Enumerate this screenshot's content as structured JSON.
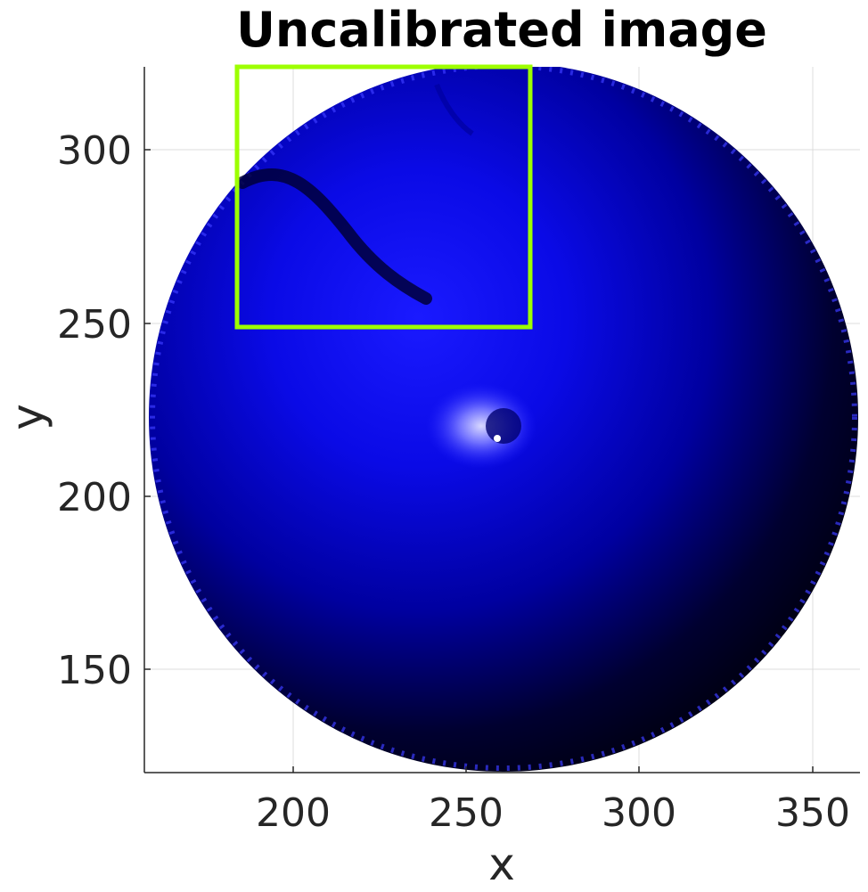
{
  "figure": {
    "title": "Uncalibrated image",
    "xlabel": "x",
    "ylabel": "y"
  },
  "axes": {
    "x_ticks": [
      "200",
      "250",
      "300",
      "350"
    ],
    "y_ticks": [
      "300",
      "250",
      "200",
      "150"
    ],
    "x_range": [
      157,
      364
    ],
    "y_range": [
      120,
      324
    ],
    "grid": true
  },
  "image": {
    "subject": "circular blue-to-black intensity image with dark curved streak and bright spot near center",
    "colormap": [
      "#000000",
      "#0000ff",
      "#ffffff"
    ]
  },
  "roi_box": {
    "color": "#9dff00",
    "x_range": [
      184,
      269
    ],
    "y_range": [
      249,
      324
    ]
  }
}
